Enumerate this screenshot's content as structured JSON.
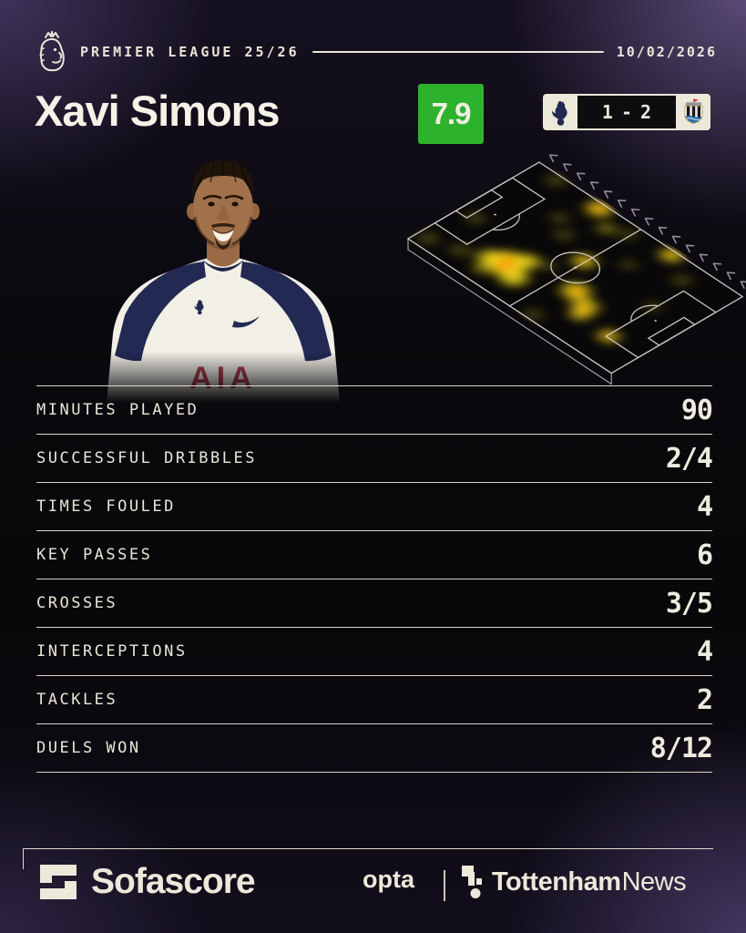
{
  "header": {
    "league_label": "PREMIER LEAGUE 25/26",
    "date": "10/02/2026"
  },
  "player": {
    "name": "Xavi Simons",
    "rating": "7.9"
  },
  "match": {
    "home_score": "1",
    "separator": "-",
    "away_score": "2"
  },
  "stats": {
    "rows": [
      {
        "label": "MINUTES PLAYED",
        "value": "90"
      },
      {
        "label": "SUCCESSFUL DRIBBLES",
        "value": "2/4"
      },
      {
        "label": "TIMES FOULED",
        "value": "4"
      },
      {
        "label": "KEY PASSES",
        "value": "6"
      },
      {
        "label": "CROSSES",
        "value": "3/5"
      },
      {
        "label": "INTERCEPTIONS",
        "value": "4"
      },
      {
        "label": "TACKLES",
        "value": "2"
      },
      {
        "label": "DUELS WON",
        "value": "8/12"
      }
    ]
  },
  "footer": {
    "sofascore_label": "Sofascore",
    "opta_label": "opta",
    "partner_bold": "Tottenham",
    "partner_regular": "News"
  },
  "colors": {
    "accent_green": "#2db22d",
    "cream": "#e9e5d8",
    "navy": "#202850",
    "heat_yellow": "#ffe81c",
    "heat_orange": "#ff9b06"
  },
  "chart_data": [
    {
      "type": "table",
      "title": "Xavi Simons match stats vs Newcastle (1-2), 10/02/2026, rating 7.9",
      "columns": [
        "stat",
        "value"
      ],
      "rows": [
        [
          "MINUTES PLAYED",
          "90"
        ],
        [
          "SUCCESSFUL DRIBBLES",
          "2/4"
        ],
        [
          "TIMES FOULED",
          "4"
        ],
        [
          "KEY PASSES",
          "6"
        ],
        [
          "CROSSES",
          "3/5"
        ],
        [
          "INTERCEPTIONS",
          "4"
        ],
        [
          "TACKLES",
          "2"
        ],
        [
          "DUELS WON",
          "8/12"
        ]
      ]
    },
    {
      "type": "heatmap",
      "title": "Player touch heatmap on isometric pitch",
      "pitch_units": [
        360,
        240
      ],
      "legend_position": "none",
      "intensity_levels": {
        "1": "dim",
        "2": "medium",
        "3": "hot",
        "4": "orange-core",
        "5": "deep-core"
      },
      "points": [
        [
          16,
          20,
          13,
          1
        ],
        [
          60,
          34,
          13,
          1
        ],
        [
          26,
          96,
          12,
          1
        ],
        [
          40,
          230,
          13,
          1
        ],
        [
          96,
          178,
          11,
          1
        ],
        [
          124,
          157,
          12,
          1
        ],
        [
          176,
          220,
          11,
          1
        ],
        [
          220,
          176,
          10,
          1
        ],
        [
          212,
          10,
          12,
          1
        ],
        [
          286,
          205,
          12,
          1
        ],
        [
          300,
          138,
          10,
          1
        ],
        [
          156,
          96,
          10,
          1
        ],
        [
          150,
          208,
          11,
          2
        ],
        [
          104,
          30,
          12,
          2
        ],
        [
          118,
          60,
          26,
          3
        ],
        [
          96,
          52,
          16,
          3
        ],
        [
          142,
          46,
          18,
          3
        ],
        [
          132,
          84,
          14,
          3
        ],
        [
          116,
          60,
          13,
          4
        ],
        [
          122,
          54,
          7,
          5
        ],
        [
          116,
          230,
          16,
          3
        ],
        [
          116,
          230,
          8,
          4
        ],
        [
          117,
          231,
          4,
          5
        ],
        [
          178,
          138,
          14,
          3
        ],
        [
          178,
          138,
          6,
          4
        ],
        [
          214,
          86,
          18,
          3
        ],
        [
          244,
          72,
          16,
          3
        ],
        [
          250,
          56,
          12,
          3
        ],
        [
          218,
          86,
          9,
          4
        ],
        [
          246,
          66,
          7,
          4
        ],
        [
          244,
          70,
          4,
          5
        ],
        [
          305,
          52,
          13,
          3
        ],
        [
          305,
          52,
          6,
          4
        ],
        [
          242,
          232,
          14,
          3
        ],
        [
          242,
          233,
          5,
          4
        ]
      ]
    }
  ]
}
